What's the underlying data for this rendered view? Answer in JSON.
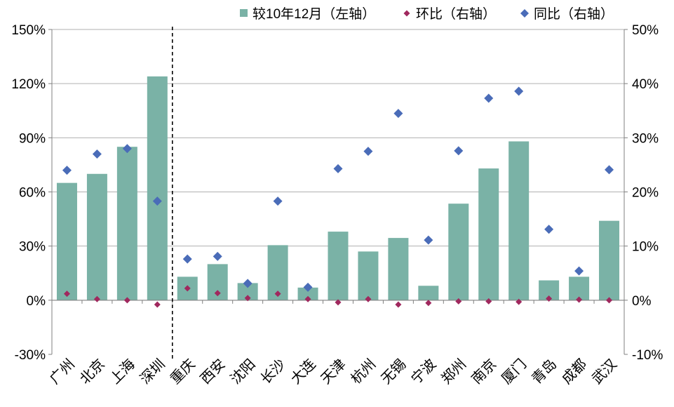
{
  "chart_data": {
    "type": "bar",
    "categories": [
      "广州",
      "北京",
      "上海",
      "深圳",
      "重庆",
      "西安",
      "沈阳",
      "长沙",
      "大连",
      "天津",
      "杭州",
      "无锡",
      "宁波",
      "郑州",
      "南京",
      "厦门",
      "青岛",
      "成都",
      "武汉"
    ],
    "series": [
      {
        "name": "较10年12月（左轴）",
        "type": "bar",
        "axis": "left",
        "color": "#7AB2A6",
        "values": [
          65,
          70,
          85,
          124,
          13,
          20,
          9.5,
          30.5,
          7,
          38,
          27,
          34.5,
          8,
          53.5,
          73,
          88,
          11,
          13,
          44
        ]
      },
      {
        "name": "环比（右轴）",
        "type": "scatter",
        "axis": "right",
        "color": "#A0285E",
        "marker": "diamond-small",
        "values": [
          1.2,
          0.2,
          0,
          -0.8,
          2.2,
          1.3,
          0.4,
          1.2,
          0.2,
          -0.4,
          0.2,
          -0.8,
          -0.5,
          -0.2,
          -0.2,
          -0.3,
          0.3,
          0.1,
          0
        ]
      },
      {
        "name": "同比（右轴）",
        "type": "scatter",
        "axis": "right",
        "color": "#4A6CB8",
        "marker": "diamond",
        "values": [
          24,
          27,
          28,
          18.3,
          7.6,
          8.1,
          3.1,
          18.3,
          2.4,
          24.3,
          27.5,
          34.5,
          11.1,
          27.6,
          37.3,
          38.6,
          13.1,
          5.4,
          24.1
        ]
      }
    ],
    "left_axis": {
      "min": -30,
      "max": 150,
      "ticks": [
        "-30%",
        "0%",
        "30%",
        "60%",
        "90%",
        "120%",
        "150%"
      ]
    },
    "right_axis": {
      "min": -10,
      "max": 50,
      "ticks": [
        "-10%",
        "0%",
        "10%",
        "20%",
        "30%",
        "40%",
        "50%"
      ]
    },
    "divider_after_index": 3,
    "legend_position": "top-right",
    "grid": true
  }
}
